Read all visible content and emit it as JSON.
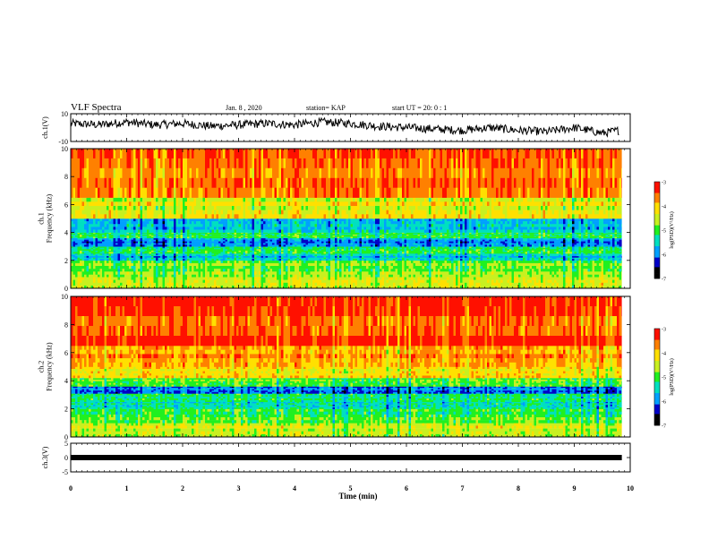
{
  "header": {
    "title": "VLF Spectra",
    "date": "Jan. 8 , 2020",
    "station": "station= KAP",
    "start_ut": "start  UT =   20: 0  : 1"
  },
  "chart_data": [
    {
      "type": "line",
      "name": "ch1-waveform",
      "ylabel": "ch.1(V)",
      "ylim": [
        -10,
        10
      ],
      "yticks": [
        "10",
        "-10"
      ],
      "xlim": [
        0,
        10
      ],
      "color": "#000000",
      "x": [
        0.0,
        0.5,
        1.0,
        1.5,
        2.0,
        2.5,
        3.0,
        3.5,
        4.0,
        4.5,
        5.0,
        5.5,
        6.0,
        6.5,
        7.0,
        7.5,
        8.0,
        8.5,
        9.0,
        9.5,
        9.8
      ],
      "y": [
        3,
        2,
        4,
        2,
        3,
        1,
        2,
        3,
        2,
        4,
        3,
        1,
        0,
        -1,
        -2,
        0,
        -2,
        -3,
        0,
        -4,
        -2
      ]
    },
    {
      "type": "heatmap",
      "name": "ch1-spectrogram",
      "ylabel": "ch.1\nFrequency  (kHz)",
      "ylim": [
        0,
        10
      ],
      "yticks": [
        "0",
        "2",
        "4",
        "6",
        "8",
        "10"
      ],
      "xlim": [
        0,
        9.85
      ],
      "band_boundaries_khz": [
        0,
        1,
        2,
        2.5,
        3,
        3.6,
        4,
        5,
        6.5,
        10
      ],
      "band_levels": [
        -4.5,
        -4.8,
        -5.6,
        -5.0,
        -5.9,
        -5.1,
        -5.6,
        -4.3,
        -3.5
      ],
      "colorbar": {
        "label": "log(PSD)(V²/Hz)",
        "range": [
          -7,
          -3
        ],
        "ticks": [
          "-3",
          "-4",
          "-5",
          "-6",
          "-7"
        ]
      }
    },
    {
      "type": "heatmap",
      "name": "ch2-spectrogram",
      "ylabel": "ch.2\nFrequency  (kHz)",
      "ylim": [
        0,
        10
      ],
      "yticks": [
        "0",
        "2",
        "4",
        "6",
        "8",
        "10"
      ],
      "xlim": [
        0,
        9.85
      ],
      "band_boundaries_khz": [
        0,
        1,
        2,
        2.5,
        3.1,
        3.6,
        4.2,
        5,
        6.5,
        10
      ],
      "band_levels": [
        -4.5,
        -5.0,
        -5.4,
        -5.1,
        -6.0,
        -4.8,
        -4.2,
        -3.8,
        -3.4
      ],
      "colorbar": {
        "label": "log(PSD)(V²/Hz)",
        "range": [
          -7,
          -3
        ],
        "ticks": [
          "-3",
          "-4",
          "-5",
          "-6",
          "-7"
        ]
      }
    },
    {
      "type": "line",
      "name": "ch3-waveform",
      "ylabel": "ch.3(V)",
      "ylim": [
        -5,
        5
      ],
      "yticks": [
        "5",
        "0",
        "-5"
      ],
      "xlim": [
        0,
        10
      ],
      "color": "#000000",
      "x": [
        0,
        9.85
      ],
      "y": [
        0,
        0
      ]
    }
  ],
  "xaxis": {
    "label": "Time  (min)",
    "ticks": [
      "0",
      "1",
      "2",
      "3",
      "4",
      "5",
      "6",
      "7",
      "8",
      "9",
      "10"
    ],
    "range": [
      0,
      10
    ]
  },
  "colormap": [
    "#000000",
    "#0000c8",
    "#00a0ff",
    "#00e0c0",
    "#20f020",
    "#c8f020",
    "#ffe000",
    "#ff8000",
    "#ff1000",
    "#ffffff"
  ]
}
